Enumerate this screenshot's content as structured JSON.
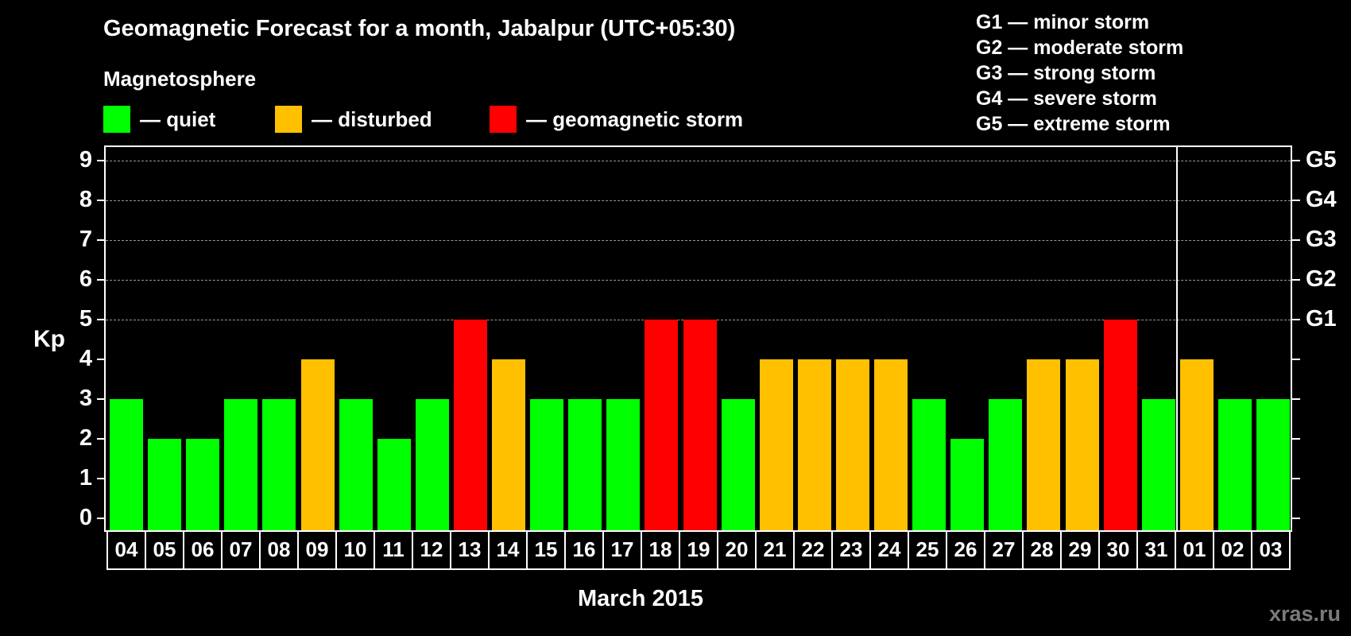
{
  "header": {
    "title": "Geomagnetic Forecast for a month, Jabalpur (UTC+05:30)",
    "subtitle": "Magnetosphere"
  },
  "legend": [
    {
      "label": "— quiet",
      "color": "#00ff00"
    },
    {
      "label": "— disturbed",
      "color": "#ffc000"
    },
    {
      "label": "— geomagnetic storm",
      "color": "#ff0000"
    }
  ],
  "g_scale": [
    "G1 — minor storm",
    "G2 — moderate storm",
    "G3 — strong storm",
    "G4 — severe storm",
    "G5 — extreme storm"
  ],
  "axis": {
    "ylabel": "Kp",
    "xlabel": "March 2015",
    "y_ticks": [
      "0",
      "1",
      "2",
      "3",
      "4",
      "5",
      "6",
      "7",
      "8",
      "9"
    ],
    "right_ticks": {
      "5": "G1",
      "6": "G2",
      "7": "G3",
      "8": "G4",
      "9": "G5"
    }
  },
  "watermark": "xras.ru",
  "colors": {
    "quiet": "#00ff00",
    "disturbed": "#ffc000",
    "storm": "#ff0000",
    "background": "#000000",
    "grid": "#9a9a9a"
  },
  "chart_data": {
    "type": "bar",
    "title": "Geomagnetic Forecast for a month, Jabalpur (UTC+05:30)",
    "xlabel": "March 2015",
    "ylabel": "Kp",
    "ylim": [
      0,
      9
    ],
    "grid": "dashed horizontal at 5-9",
    "month_divider_after": "31",
    "categories": [
      "04",
      "05",
      "06",
      "07",
      "08",
      "09",
      "10",
      "11",
      "12",
      "13",
      "14",
      "15",
      "16",
      "17",
      "18",
      "19",
      "20",
      "21",
      "22",
      "23",
      "24",
      "25",
      "26",
      "27",
      "28",
      "29",
      "30",
      "31",
      "01",
      "02",
      "03"
    ],
    "values": [
      3,
      2,
      2,
      3,
      3,
      4,
      3,
      2,
      3,
      5,
      4,
      3,
      3,
      3,
      5,
      5,
      3,
      4,
      4,
      4,
      4,
      3,
      2,
      3,
      4,
      4,
      5,
      3,
      4,
      3,
      3
    ],
    "status": [
      "quiet",
      "quiet",
      "quiet",
      "quiet",
      "quiet",
      "disturbed",
      "quiet",
      "quiet",
      "quiet",
      "storm",
      "disturbed",
      "quiet",
      "quiet",
      "quiet",
      "storm",
      "storm",
      "quiet",
      "disturbed",
      "disturbed",
      "disturbed",
      "disturbed",
      "quiet",
      "quiet",
      "quiet",
      "disturbed",
      "disturbed",
      "storm",
      "quiet",
      "disturbed",
      "quiet",
      "quiet"
    ],
    "legend": [
      "quiet",
      "disturbed",
      "geomagnetic storm"
    ],
    "right_axis_labels": {
      "5": "G1",
      "6": "G2",
      "7": "G3",
      "8": "G4",
      "9": "G5"
    }
  }
}
